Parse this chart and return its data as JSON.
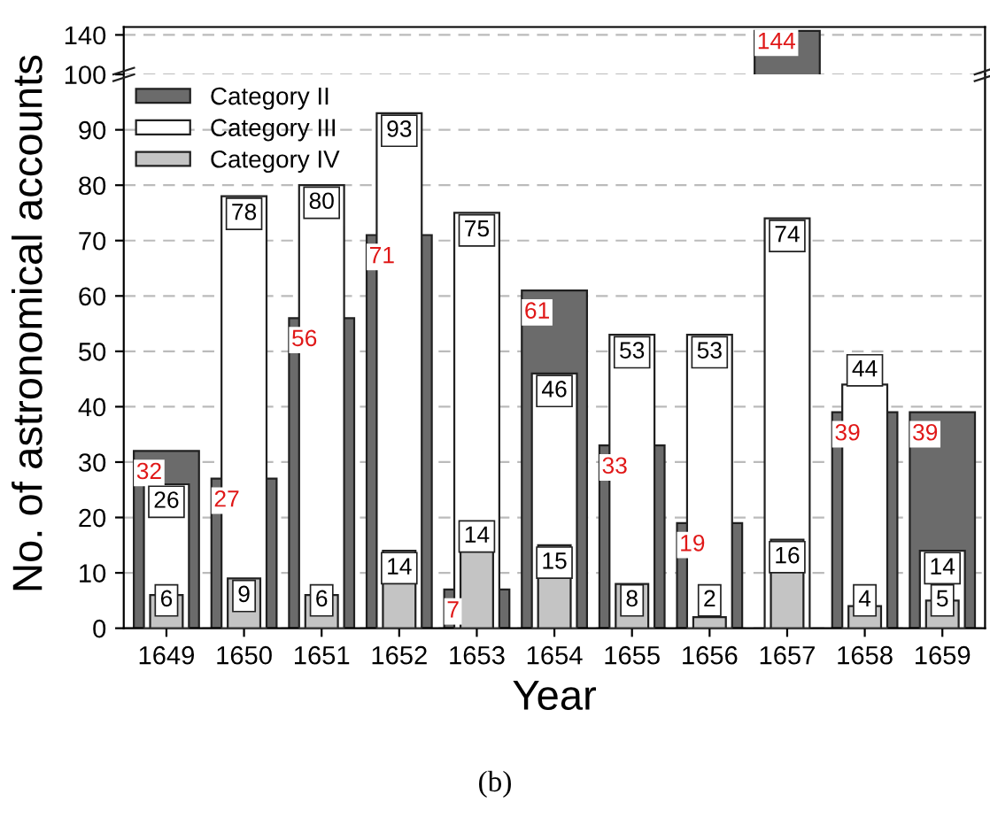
{
  "chart_data": [
    {
      "type": "bar",
      "categories": [
        "1649",
        "1650",
        "1651",
        "1652",
        "1653",
        "1654",
        "1655",
        "1656",
        "1657",
        "1658",
        "1659"
      ],
      "series": [
        {
          "color": "#6b6b6b",
          "values": [
            null,
            null,
            null,
            null,
            null,
            null,
            null,
            null,
            144,
            null,
            null
          ]
        }
      ],
      "ylim": [
        100,
        148
      ],
      "yticks": [
        100,
        140
      ],
      "tick_labels": "y",
      "grid": "y",
      "data_labels": true
    },
    {
      "type": "bar",
      "xlabel": "Year",
      "ylabel": "No. of astronomical accounts",
      "categories": [
        "1649",
        "1650",
        "1651",
        "1652",
        "1653",
        "1654",
        "1655",
        "1656",
        "1657",
        "1658",
        "1659"
      ],
      "series": [
        {
          "name": "Category II",
          "color": "#6b6b6b",
          "values": [
            32,
            27,
            56,
            71,
            7,
            61,
            33,
            19,
            null,
            39,
            39
          ]
        },
        {
          "name": "Category III",
          "color": "#ffffff",
          "values": [
            26,
            78,
            80,
            93,
            75,
            46,
            53,
            53,
            74,
            44,
            14
          ]
        },
        {
          "name": "Category IV",
          "color": "#c4c4c4",
          "values": [
            6,
            9,
            6,
            14,
            14,
            15,
            8,
            2,
            16,
            4,
            5
          ]
        }
      ],
      "ylim": [
        0,
        100
      ],
      "yticks": [
        0,
        10,
        20,
        30,
        40,
        50,
        60,
        70,
        80,
        90
      ],
      "grid": "y",
      "legend": "top left",
      "data_labels": true,
      "annotations": [
        "(b)"
      ]
    }
  ]
}
